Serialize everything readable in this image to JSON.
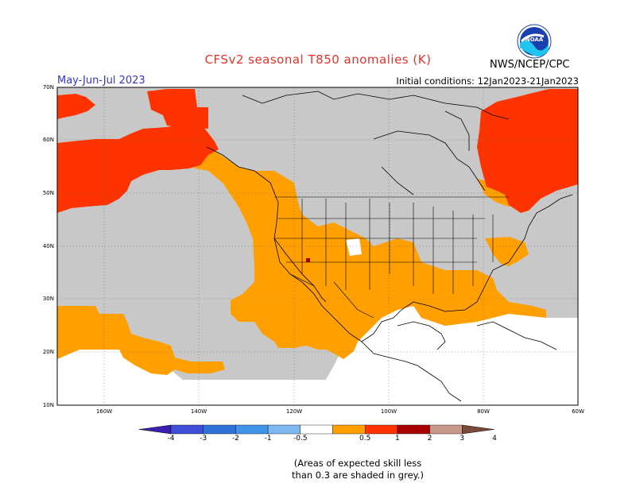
{
  "header": {
    "title": "CFSv2 seasonal T850 anomalies (K)",
    "season": "May-Jun-Jul 2023",
    "initial_conditions": "Initial conditions: 12Jan2023-21Jan2023",
    "agency": "NWS/NCEP/CPC",
    "logo_text": "NOAA"
  },
  "map": {
    "lat_labels": [
      "70N",
      "60N",
      "50N",
      "40N",
      "30N",
      "20N",
      "10N"
    ],
    "lon_labels": [
      "160W",
      "140W",
      "120W",
      "100W",
      "80W",
      "60W"
    ],
    "region": "North America",
    "lat_range": [
      10,
      70
    ],
    "lon_range": [
      -170,
      -60
    ]
  },
  "colorbar": {
    "labels": [
      "-4",
      "-3",
      "-2",
      "-1",
      "-0.5",
      "0.5",
      "1",
      "2",
      "3",
      "4"
    ],
    "colors": [
      "#3a1fb0",
      "#3f4ed6",
      "#2f72d8",
      "#3f94ea",
      "#7fb7f0",
      "#ffffff",
      "#ff9f00",
      "#ff3300",
      "#a80000",
      "#c7978a",
      "#7a4a3a"
    ]
  },
  "anomaly_colors": {
    "orange_0.5_1": "#ff9f00",
    "red_1_2": "#ff3300",
    "dark_red_2_3": "#a80000",
    "grey_low_skill": "#c8c8c8"
  },
  "note": {
    "line1": "(Areas of expected skill less",
    "line2": "than 0.3 are shaded in grey.)"
  }
}
